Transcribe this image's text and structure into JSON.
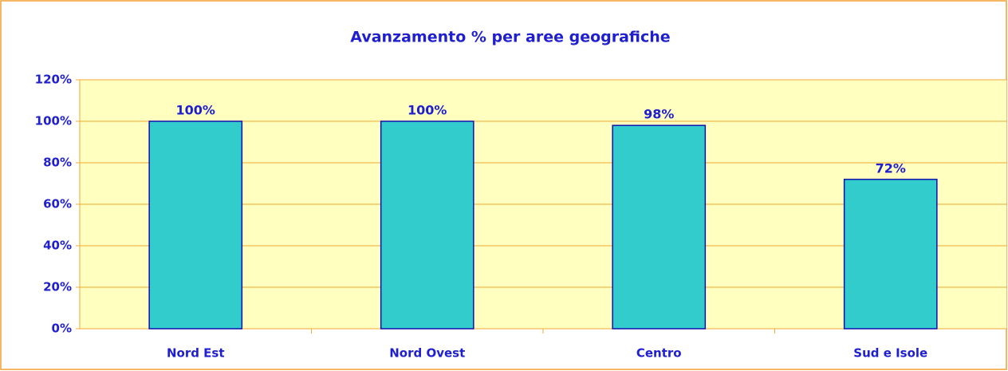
{
  "chart_data": {
    "type": "bar",
    "title": "Avanzamento % per aree geografiche",
    "categories": [
      "Nord Est",
      "Nord Ovest",
      "Centro",
      "Sud e Isole"
    ],
    "values": [
      100,
      100,
      98,
      72
    ],
    "value_labels": [
      "100%",
      "100%",
      "98%",
      "72%"
    ],
    "color": "#33cccc",
    "ylim": [
      0,
      120
    ],
    "yticks": [
      {
        "value": 0,
        "label": "0%"
      },
      {
        "value": 20,
        "label": "20%"
      },
      {
        "value": 40,
        "label": "40%"
      },
      {
        "value": 60,
        "label": "60%"
      },
      {
        "value": 80,
        "label": "80%"
      },
      {
        "value": 100,
        "label": "100%"
      },
      {
        "value": 120,
        "label": "120%"
      }
    ],
    "grid": true
  }
}
